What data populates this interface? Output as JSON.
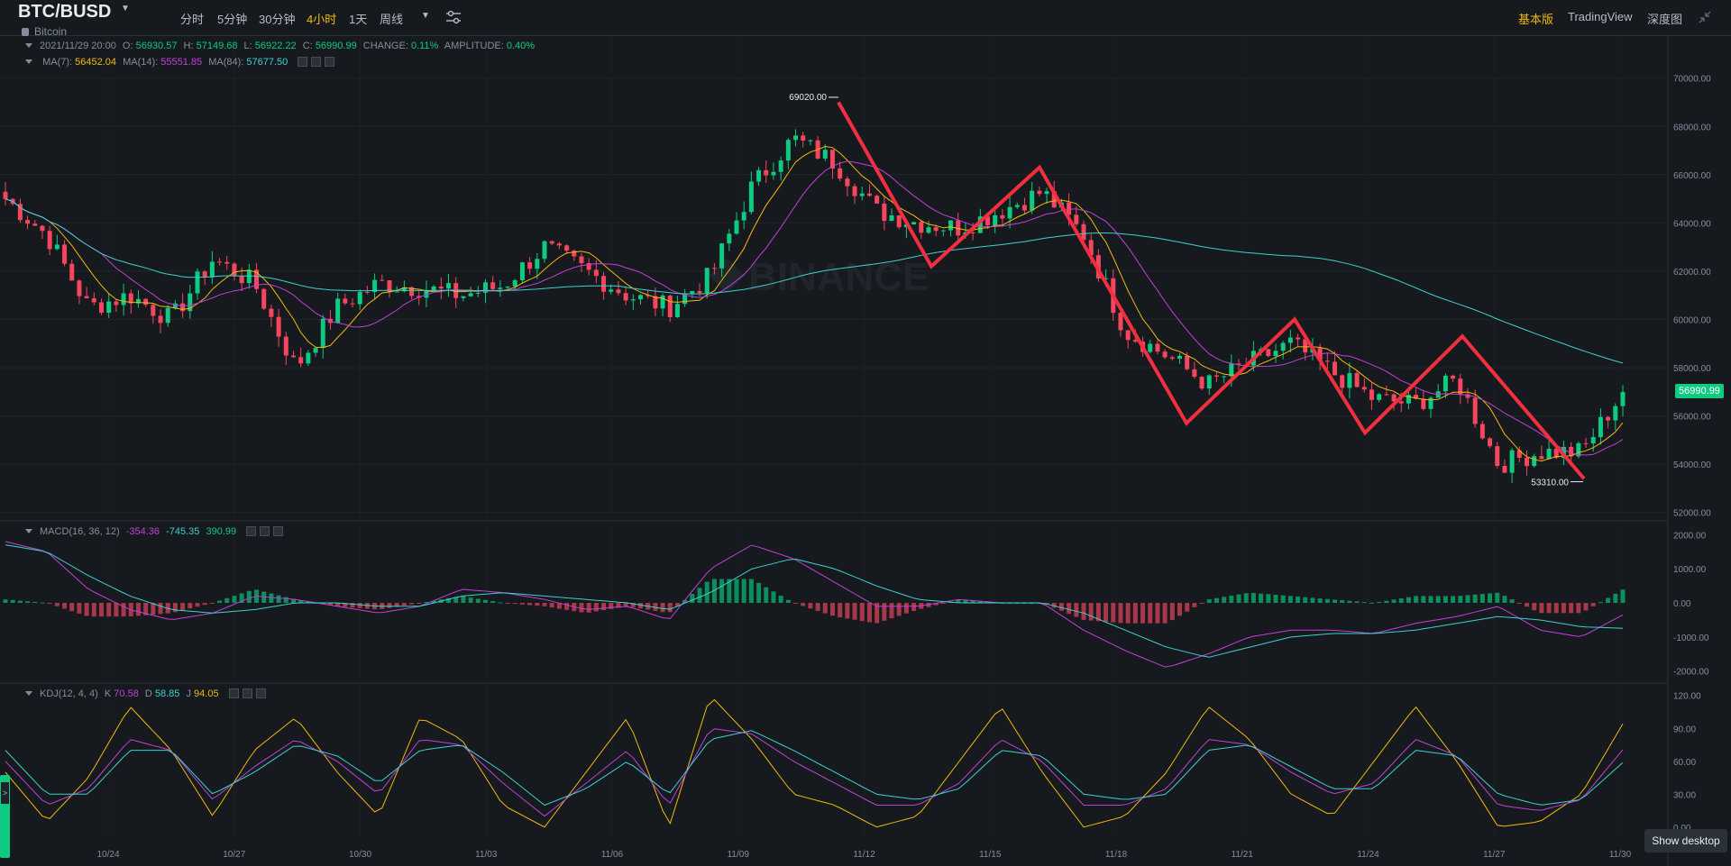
{
  "header": {
    "symbol": "BTC/BUSD",
    "symbol_dropdown_icon": "caret-down-icon",
    "subtitle": "Bitcoin",
    "timeframes": [
      "分时",
      "5分钟",
      "30分钟",
      "4小时",
      "1天",
      "周线"
    ],
    "active_timeframe": "4小时",
    "settings_icon": "sliders-icon",
    "views": [
      "基本版",
      "TradingView",
      "深度图"
    ],
    "active_view": "基本版",
    "collapse_icon": "collapse-icon"
  },
  "ohlc": {
    "date": "2021/11/29 20:00",
    "o_label": "O:",
    "o": "56930.57",
    "h_label": "H:",
    "h": "57149.68",
    "l_label": "L:",
    "l": "56922.22",
    "c_label": "C:",
    "c": "56990.99",
    "change_label": "CHANGE:",
    "change": "0.11%",
    "amplitude_label": "AMPLITUDE:",
    "amplitude": "0.40%"
  },
  "ma": {
    "ma7_label": "MA(7):",
    "ma7": "56452.04",
    "ma14_label": "MA(14):",
    "ma14": "55551.85",
    "ma84_label": "MA(84):",
    "ma84": "57677.50"
  },
  "macd": {
    "label": "MACD(16, 36, 12)",
    "macd": "-354.36",
    "signal": "-745.35",
    "hist": "390.99"
  },
  "kdj": {
    "label": "KDJ(12, 4, 4)",
    "k_label": "K",
    "k": "70.58",
    "d_label": "D",
    "d": "58.85",
    "j_label": "J",
    "j": "94.05"
  },
  "current_price": "56990.99",
  "watermark": "BINANCE",
  "show_desktop": "Show desktop",
  "colors": {
    "up": "#0ecb81",
    "down": "#f6465d",
    "ma7": "#f0b90b",
    "ma14": "#c041d6",
    "ma84": "#3ed0cf",
    "annotation": "#f12f3f",
    "background": "#161a1e",
    "grid": "#2b3139"
  },
  "chart_data": [
    {
      "type": "candlestick",
      "title": "BTC/BUSD 4h",
      "x_tick_labels": [
        "10/24",
        "10/27",
        "10/30",
        "11/03",
        "11/06",
        "11/09",
        "11/12",
        "11/15",
        "11/18",
        "11/21",
        "11/24",
        "11/27",
        "11/30"
      ],
      "y_tick_labels": [
        "70000.00",
        "68000.00",
        "66000.00",
        "64000.00",
        "62000.00",
        "60000.00",
        "58000.00",
        "56000.00",
        "54000.00",
        "52000.00"
      ],
      "ylim": [
        51800,
        70400
      ],
      "annotations": [
        {
          "text": "69020.00",
          "value": 69020,
          "kind": "high"
        },
        {
          "text": "53310.00",
          "value": 53310,
          "kind": "low"
        }
      ],
      "approx_close_path": {
        "x": [
          "10/21",
          "10/22",
          "10/23",
          "10/24",
          "10/25",
          "10/26",
          "10/27",
          "10/28",
          "10/29",
          "10/30",
          "10/31",
          "11/01",
          "11/02",
          "11/03",
          "11/04",
          "11/05",
          "11/06",
          "11/07",
          "11/08",
          "11/09",
          "11/10",
          "11/11",
          "11/12",
          "11/13",
          "11/14",
          "11/15",
          "11/16",
          "11/17",
          "11/18",
          "11/19",
          "11/20",
          "11/21",
          "11/22",
          "11/23",
          "11/24",
          "11/25",
          "11/26",
          "11/27",
          "11/28",
          "11/29"
        ],
        "close": [
          65000,
          63500,
          60500,
          61000,
          60000,
          62500,
          61500,
          58000,
          60500,
          61500,
          61300,
          61000,
          61400,
          63000,
          62000,
          61000,
          60500,
          61800,
          65500,
          67500,
          66500,
          64500,
          64000,
          63800,
          64500,
          65300,
          63500,
          59500,
          58500,
          57300,
          58200,
          59000,
          57800,
          56700,
          56500,
          57500,
          54000,
          54500,
          54500,
          56990
        ]
      },
      "zigzag_annotation": [
        69000,
        62200,
        66300,
        55700,
        60000,
        55300,
        59300,
        53400
      ],
      "series": [
        {
          "name": "MA(7)",
          "last": 56452.04
        },
        {
          "name": "MA(14)",
          "last": 55551.85
        },
        {
          "name": "MA(84)",
          "last": 57677.5
        }
      ]
    },
    {
      "type": "bar+line",
      "title": "MACD(16, 36, 12)",
      "y_tick_labels": [
        "2000.00",
        "1000.00",
        "0.00",
        "-1000.00",
        "-2000.00"
      ],
      "ylim": [
        -2300,
        2300
      ],
      "macd_line": [
        1800,
        1500,
        400,
        -200,
        -500,
        -300,
        200,
        100,
        -100,
        -300,
        -100,
        400,
        300,
        100,
        -200,
        -100,
        -500,
        1000,
        1700,
        1300,
        600,
        -100,
        -100,
        100,
        0,
        0,
        -800,
        -1400,
        -1900,
        -1500,
        -1000,
        -800,
        -800,
        -900,
        -600,
        -400,
        -100,
        -800,
        -1000,
        -354
      ],
      "signal_line": [
        1700,
        1500,
        800,
        200,
        -200,
        -300,
        -200,
        0,
        0,
        -100,
        -100,
        200,
        300,
        200,
        100,
        0,
        -200,
        300,
        1000,
        1300,
        1000,
        500,
        100,
        0,
        0,
        0,
        -300,
        -800,
        -1300,
        -1600,
        -1300,
        -1000,
        -900,
        -900,
        -800,
        -600,
        -400,
        -500,
        -700,
        -745
      ],
      "histogram": [
        100,
        0,
        -400,
        -400,
        -300,
        0,
        400,
        100,
        -100,
        -200,
        0,
        200,
        0,
        -100,
        -300,
        -100,
        -300,
        700,
        700,
        0,
        -400,
        -600,
        -200,
        100,
        0,
        0,
        -500,
        -600,
        -600,
        100,
        300,
        200,
        100,
        0,
        200,
        200,
        300,
        -300,
        -300,
        391
      ]
    },
    {
      "type": "line",
      "title": "KDJ(12, 4, 4)",
      "y_tick_labels": [
        "120.00",
        "90.00",
        "60.00",
        "30.00",
        "0.00"
      ],
      "ylim": [
        -10,
        128
      ],
      "k": [
        60,
        20,
        35,
        80,
        70,
        25,
        55,
        80,
        60,
        30,
        80,
        75,
        40,
        10,
        40,
        70,
        20,
        90,
        85,
        60,
        40,
        20,
        20,
        40,
        80,
        60,
        20,
        20,
        35,
        80,
        75,
        50,
        30,
        40,
        80,
        65,
        20,
        15,
        25,
        70.58
      ],
      "d": [
        70,
        30,
        30,
        70,
        70,
        30,
        50,
        75,
        65,
        40,
        70,
        75,
        50,
        20,
        35,
        60,
        30,
        80,
        88,
        70,
        50,
        30,
        25,
        35,
        70,
        65,
        30,
        25,
        30,
        70,
        75,
        55,
        35,
        35,
        70,
        65,
        30,
        20,
        25,
        58.85
      ],
      "j": [
        50,
        5,
        45,
        110,
        70,
        10,
        70,
        100,
        50,
        10,
        100,
        80,
        20,
        0,
        50,
        100,
        0,
        120,
        80,
        30,
        20,
        0,
        10,
        60,
        110,
        50,
        0,
        10,
        50,
        110,
        80,
        30,
        10,
        60,
        110,
        60,
        0,
        5,
        30,
        94.05
      ]
    }
  ]
}
